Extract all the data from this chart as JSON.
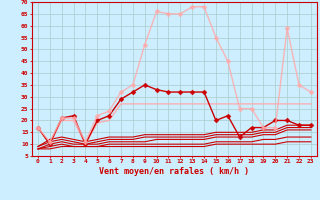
{
  "background_color": "#cceeff",
  "grid_color": "#aacccc",
  "xlabel": "Vent moyen/en rafales ( km/h )",
  "xlabel_color": "#cc0000",
  "tick_color": "#cc0000",
  "spine_color": "#cc0000",
  "xlim": [
    -0.5,
    23.5
  ],
  "ylim": [
    5,
    70
  ],
  "yticks": [
    5,
    10,
    15,
    20,
    25,
    30,
    35,
    40,
    45,
    50,
    55,
    60,
    65,
    70
  ],
  "xticks": [
    0,
    1,
    2,
    3,
    4,
    5,
    6,
    7,
    8,
    9,
    10,
    11,
    12,
    13,
    14,
    15,
    16,
    17,
    18,
    19,
    20,
    21,
    22,
    23
  ],
  "series": [
    {
      "x": [
        0,
        1,
        2,
        3,
        4,
        5,
        6,
        7,
        8,
        9,
        10,
        11,
        12,
        13,
        14,
        15,
        16,
        17,
        18,
        19,
        20,
        21,
        22,
        23
      ],
      "y": [
        8,
        8,
        9,
        9,
        9,
        9,
        9,
        9,
        9,
        9,
        9,
        9,
        9,
        9,
        9,
        10,
        10,
        10,
        10,
        10,
        10,
        11,
        11,
        11
      ],
      "color": "#cc0000",
      "lw": 0.8,
      "marker": null,
      "alpha": 1.0
    },
    {
      "x": [
        0,
        1,
        2,
        3,
        4,
        5,
        6,
        7,
        8,
        9,
        10,
        11,
        12,
        13,
        14,
        15,
        16,
        17,
        18,
        19,
        20,
        21,
        22,
        23
      ],
      "y": [
        8,
        9,
        10,
        9,
        9,
        9,
        10,
        10,
        10,
        10,
        10,
        10,
        10,
        10,
        10,
        11,
        11,
        11,
        11,
        12,
        12,
        13,
        13,
        13
      ],
      "color": "#cc0000",
      "lw": 0.8,
      "marker": null,
      "alpha": 1.0
    },
    {
      "x": [
        0,
        1,
        2,
        3,
        4,
        5,
        6,
        7,
        8,
        9,
        10,
        11,
        12,
        13,
        14,
        15,
        16,
        17,
        18,
        19,
        20,
        21,
        22,
        23
      ],
      "y": [
        8,
        10,
        11,
        10,
        10,
        10,
        11,
        11,
        11,
        11,
        12,
        12,
        12,
        12,
        12,
        13,
        13,
        13,
        13,
        14,
        14,
        16,
        16,
        16
      ],
      "color": "#cc0000",
      "lw": 0.8,
      "marker": null,
      "alpha": 1.0
    },
    {
      "x": [
        0,
        1,
        2,
        3,
        4,
        5,
        6,
        7,
        8,
        9,
        10,
        11,
        12,
        13,
        14,
        15,
        16,
        17,
        18,
        19,
        20,
        21,
        22,
        23
      ],
      "y": [
        9,
        11,
        12,
        11,
        10,
        11,
        12,
        12,
        12,
        13,
        13,
        13,
        13,
        13,
        13,
        14,
        14,
        14,
        14,
        15,
        15,
        17,
        17,
        17
      ],
      "color": "#cc0000",
      "lw": 0.8,
      "marker": null,
      "alpha": 1.0
    },
    {
      "x": [
        0,
        1,
        2,
        3,
        4,
        5,
        6,
        7,
        8,
        9,
        10,
        11,
        12,
        13,
        14,
        15,
        16,
        17,
        18,
        19,
        20,
        21,
        22,
        23
      ],
      "y": [
        9,
        12,
        13,
        12,
        11,
        12,
        13,
        13,
        13,
        14,
        14,
        14,
        14,
        14,
        14,
        15,
        15,
        15,
        15,
        16,
        16,
        18,
        18,
        18
      ],
      "color": "#cc0000",
      "lw": 0.8,
      "marker": null,
      "alpha": 1.0
    },
    {
      "x": [
        0,
        1,
        2,
        3,
        4,
        5,
        6,
        7,
        8,
        9,
        10,
        11,
        12,
        13,
        14,
        15,
        16,
        17,
        18,
        19,
        20,
        21,
        22,
        23
      ],
      "y": [
        17,
        10,
        20,
        20,
        10,
        19,
        20,
        27,
        27,
        27,
        27,
        27,
        27,
        27,
        27,
        27,
        27,
        27,
        27,
        27,
        27,
        27,
        27,
        27
      ],
      "color": "#ffaaaa",
      "lw": 1.0,
      "marker": null,
      "alpha": 0.9
    },
    {
      "x": [
        0,
        1,
        2,
        3,
        4,
        5,
        6,
        7,
        8,
        9,
        10,
        11,
        12,
        13,
        14,
        15,
        16,
        17,
        18,
        19,
        20,
        21,
        22,
        23
      ],
      "y": [
        17,
        10,
        21,
        22,
        10,
        20,
        22,
        29,
        32,
        35,
        33,
        32,
        32,
        32,
        32,
        20,
        22,
        13,
        17,
        17,
        20,
        20,
        18,
        18
      ],
      "color": "#cc0000",
      "lw": 1.0,
      "marker": "D",
      "markersize": 2.5,
      "alpha": 1.0
    },
    {
      "x": [
        0,
        1,
        2,
        3,
        4,
        5,
        6,
        7,
        8,
        9,
        10,
        11,
        12,
        13,
        14,
        15,
        16,
        17,
        18,
        19,
        20,
        21,
        22,
        23
      ],
      "y": [
        17,
        11,
        21,
        21,
        11,
        22,
        24,
        32,
        35,
        52,
        66,
        65,
        65,
        68,
        68,
        55,
        45,
        25,
        25,
        17,
        17,
        59,
        35,
        32
      ],
      "color": "#ffaaaa",
      "lw": 1.0,
      "marker": "D",
      "markersize": 2.5,
      "alpha": 0.85
    }
  ]
}
